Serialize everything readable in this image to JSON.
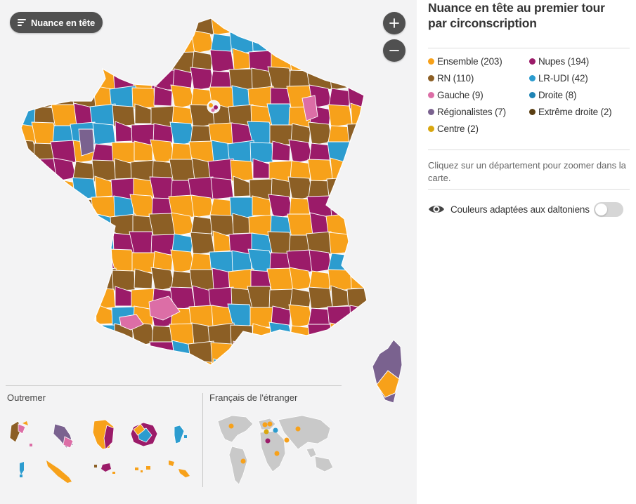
{
  "map": {
    "layer_button_label": "Nuance en tête",
    "zoom_in_symbol": "+",
    "zoom_out_symbol": "−",
    "outremer_title": "Outremer",
    "etranger_title": "Français de l'étranger",
    "region_colors": [
      "#f7a11a",
      "#9b1b69",
      "#8c5f25",
      "#2c9ccf",
      "#f7a11a",
      "#8c5f25",
      "#9b1b69",
      "#f7a11a",
      "#2c9ccf",
      "#8c5f25",
      "#f7a11a",
      "#9b1b69",
      "#8c5f25",
      "#f7a11a",
      "#2c9ccf",
      "#8c5f25",
      "#f7a11a",
      "#9b1b69",
      "#f7a11a",
      "#8c5f25",
      "#9b1b69",
      "#2c9ccf",
      "#f7a11a",
      "#8c5f25",
      "#f7a11a",
      "#9b1b69",
      "#8c5f25",
      "#f7a11a",
      "#2c9ccf",
      "#9b1b69",
      "#8c5f25",
      "#f7a11a",
      "#9b1b69",
      "#8c5f25",
      "#f7a11a",
      "#9b1b69",
      "#2c9ccf",
      "#8c5f25",
      "#f7a11a",
      "#9b1b69",
      "#8c5f25",
      "#f7a11a",
      "#9b1b69",
      "#8c5f25",
      "#f7a11a",
      "#2c9ccf",
      "#9b1b69",
      "#8c5f25"
    ]
  },
  "sidebar": {
    "title": "Nuance en tête au premier tour par circonscription",
    "legend": [
      {
        "label": "Ensemble (203)",
        "color": "#f7a11a",
        "icon": "dot"
      },
      {
        "label": "Nupes (194)",
        "color": "#9b1b69",
        "icon": "dot"
      },
      {
        "label": "RN (110)",
        "color": "#8c5f25",
        "icon": "dot"
      },
      {
        "label": "LR-UDI (42)",
        "color": "#2c9ccf",
        "icon": "dot"
      },
      {
        "label": "Gauche (9)",
        "color": "#dc6ea6",
        "icon": "dot"
      },
      {
        "label": "Droite (8)",
        "color": "#1f84b5",
        "icon": "dot"
      },
      {
        "label": "Régionalistes (7)",
        "color": "#7a628f",
        "icon": "dot"
      },
      {
        "label": "Extrême droite (2)",
        "color": "#5a3e12",
        "icon": "dot"
      },
      {
        "label": "Centre (2)",
        "color": "#d9a70f",
        "icon": "dot"
      }
    ],
    "help_text": "Cliquez sur un département pour zoomer dans la carte.",
    "colorblind_label": "Couleurs adaptées aux daltoniens",
    "colorblind_enabled": false
  }
}
